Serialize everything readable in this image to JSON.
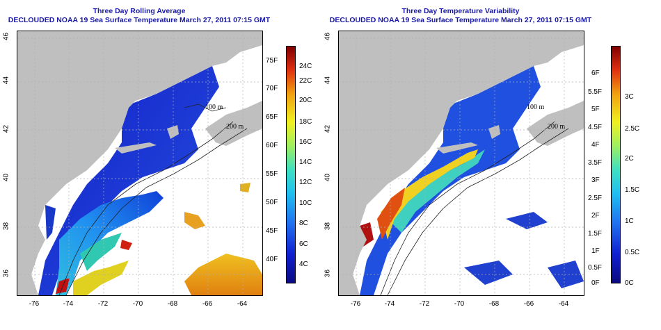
{
  "panels": [
    {
      "title_line1": "Three Day Rolling Average",
      "title_line2": "DECLOUDED NOAA 19 Sea Surface Temperature March 27, 2011 07:15 GMT",
      "lat_labels": [
        "46",
        "44",
        "42",
        "40",
        "38",
        "36"
      ],
      "lon_labels": [
        "-76",
        "-74",
        "-72",
        "-70",
        "-68",
        "-66",
        "-64"
      ],
      "colorbar": {
        "left_labels": [
          "75F",
          "70F",
          "65F",
          "60F",
          "55F",
          "50F",
          "45F",
          "40F"
        ],
        "right_labels": [
          "24C",
          "22C",
          "20C",
          "18C",
          "16C",
          "14C",
          "12C",
          "10C",
          "8C",
          "6C",
          "4C"
        ],
        "range_label": "sea-surface-temperature"
      }
    },
    {
      "title_line1": "Three Day Temperature Variability",
      "title_line2": "DECLOUDED NOAA 19 Sea Surface Temperature March 27, 2011 07:15 GMT",
      "lat_labels": [
        "46",
        "44",
        "42",
        "40",
        "38",
        "36"
      ],
      "lon_labels": [
        "-76",
        "-74",
        "-72",
        "-70",
        "-68",
        "-66",
        "-64"
      ],
      "colorbar": {
        "left_labels": [
          "6F",
          "5.5F",
          "5F",
          "4.5F",
          "4F",
          "3.5F",
          "3F",
          "2.5F",
          "2F",
          "1.5F",
          "1F",
          "0.5F",
          "0F"
        ],
        "right_labels": [
          "3C",
          "2.5C",
          "2C",
          "1.5C",
          "1C",
          "0.5C",
          "0C"
        ],
        "range_label": "temperature-variability"
      }
    }
  ],
  "contour_labels": [
    "100 m",
    "200 m",
    "100 m",
    "200 m"
  ],
  "colors": {
    "land": "#bfbfbf",
    "title": "#1a1aa8",
    "no_data": "#ffffff",
    "grid": "#b0b0b0"
  }
}
